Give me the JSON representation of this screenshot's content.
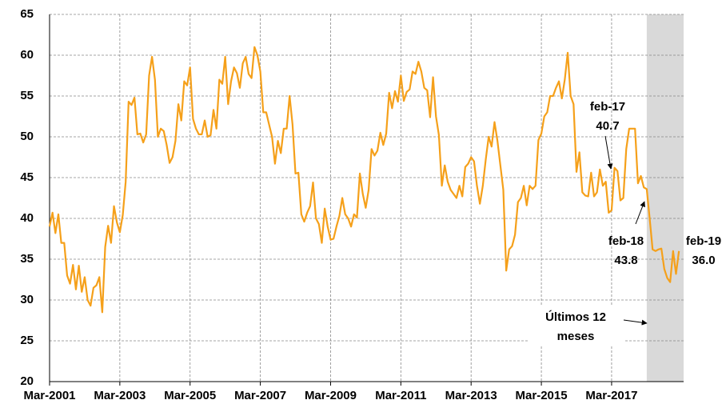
{
  "chart_data": {
    "type": "line",
    "categories": [
      "Mar-2001",
      null,
      null,
      null,
      null,
      null,
      null,
      null,
      null,
      null,
      null,
      null,
      null,
      null,
      null,
      null,
      null,
      null,
      null,
      null,
      null,
      null,
      null,
      null,
      "Mar-2003",
      null,
      null,
      null,
      null,
      null,
      null,
      null,
      null,
      null,
      null,
      null,
      null,
      null,
      null,
      null,
      null,
      null,
      null,
      null,
      null,
      null,
      null,
      null,
      "Mar-2005",
      null,
      null,
      null,
      null,
      null,
      null,
      null,
      null,
      null,
      null,
      null,
      null,
      null,
      null,
      null,
      null,
      null,
      null,
      null,
      null,
      null,
      null,
      null,
      "Mar-2007",
      null,
      null,
      null,
      null,
      null,
      null,
      null,
      null,
      null,
      null,
      null,
      null,
      null,
      null,
      null,
      null,
      null,
      null,
      null,
      null,
      null,
      null,
      null,
      "Mar-2009",
      null,
      null,
      null,
      null,
      null,
      null,
      null,
      null,
      null,
      null,
      null,
      null,
      null,
      null,
      null,
      null,
      null,
      null,
      null,
      null,
      null,
      null,
      null,
      "Mar-2011",
      null,
      null,
      null,
      null,
      null,
      null,
      null,
      null,
      null,
      null,
      null,
      null,
      null,
      null,
      null,
      null,
      null,
      null,
      null,
      null,
      null,
      null,
      null,
      "Mar-2013",
      null,
      null,
      null,
      null,
      null,
      null,
      null,
      null,
      null,
      null,
      null,
      null,
      null,
      null,
      null,
      null,
      null,
      null,
      null,
      null,
      null,
      null,
      null,
      "Mar-2015",
      null,
      null,
      null,
      null,
      null,
      null,
      null,
      null,
      null,
      null,
      null,
      null,
      null,
      null,
      null,
      null,
      null,
      null,
      null,
      null,
      null,
      null,
      null,
      "Mar-2017",
      null,
      null,
      null,
      null,
      null,
      null,
      null,
      null,
      null,
      null,
      null,
      null,
      null,
      null,
      null,
      null,
      null,
      null,
      null,
      null,
      null,
      null,
      null
    ],
    "values": [
      39,
      40.7,
      38.2,
      40.5,
      37,
      37,
      33,
      32,
      34.3,
      31.3,
      34.2,
      31,
      32.8,
      30,
      29.3,
      31.5,
      31.8,
      32.8,
      28.5,
      36.5,
      39.1,
      37,
      41.5,
      39.5,
      38.3,
      40.4,
      44.5,
      54.3,
      53.9,
      54.8,
      50.3,
      50.4,
      49.3,
      50.3,
      57.5,
      59.8,
      57,
      50,
      51,
      50.7,
      49,
      46.8,
      47.5,
      49.5,
      54,
      52,
      56.8,
      56.3,
      58.5,
      52.2,
      51,
      50.3,
      50.3,
      52,
      50,
      50.2,
      53.3,
      51,
      57,
      56.5,
      59.8,
      54,
      56.8,
      58.5,
      57.8,
      56,
      59,
      59.8,
      57.7,
      57.2,
      61,
      60,
      58,
      53,
      53,
      51.5,
      50,
      46.7,
      49.5,
      48,
      51,
      51,
      55,
      51.5,
      45.5,
      45.6,
      40.5,
      39.6,
      40.7,
      41.5,
      44.4,
      40,
      39.3,
      37,
      41.2,
      39,
      37.4,
      37.5,
      39,
      40.3,
      42.5,
      40.5,
      40,
      39,
      40.5,
      40.1,
      45.5,
      43,
      41.3,
      43.5,
      48.5,
      47.7,
      48.3,
      50.5,
      49,
      50.4,
      55.4,
      53.5,
      55.6,
      54.3,
      57.5,
      54.4,
      55.5,
      55.8,
      58,
      57.7,
      59.2,
      58,
      56,
      55.7,
      52.4,
      57.3,
      52.5,
      50.2,
      44,
      46.5,
      44.5,
      43.5,
      43,
      42.5,
      44,
      42.7,
      46.3,
      46.7,
      47.5,
      47,
      44,
      41.8,
      44,
      47.2,
      50,
      48.8,
      51.8,
      49.5,
      46.5,
      43.5,
      33.6,
      36.2,
      36.6,
      38,
      42,
      42.5,
      44,
      41.6,
      44,
      43.6,
      44,
      49.6,
      50.4,
      52.5,
      53,
      55,
      55,
      56,
      56.8,
      54.7,
      57,
      60.3,
      55,
      54,
      45.7,
      48.1,
      43.2,
      42.8,
      42.7,
      45.6,
      42.7,
      43.2,
      46,
      44,
      44.5,
      40.7,
      41,
      46.2,
      45.8,
      42.2,
      42.5,
      48.5,
      51,
      51,
      51,
      44.3,
      45.2,
      43.8,
      43.6,
      40,
      36.2,
      36,
      36.2,
      36.3,
      33.8,
      32.7,
      32.2,
      36,
      33.2,
      36.0
    ],
    "color": "#f5a01a",
    "ylim": [
      20,
      65
    ],
    "yticks": [
      20,
      25,
      30,
      35,
      40,
      45,
      50,
      55,
      60,
      65
    ],
    "grid": true,
    "shaded_last_n": 12,
    "annotations": [
      {
        "text": "feb-17",
        "label": "40.7"
      },
      {
        "text": "feb-18",
        "label": "43.8"
      },
      {
        "text": "feb-19",
        "label": "36.0"
      },
      {
        "text": "Últimos 12",
        "label": "meses"
      }
    ]
  }
}
